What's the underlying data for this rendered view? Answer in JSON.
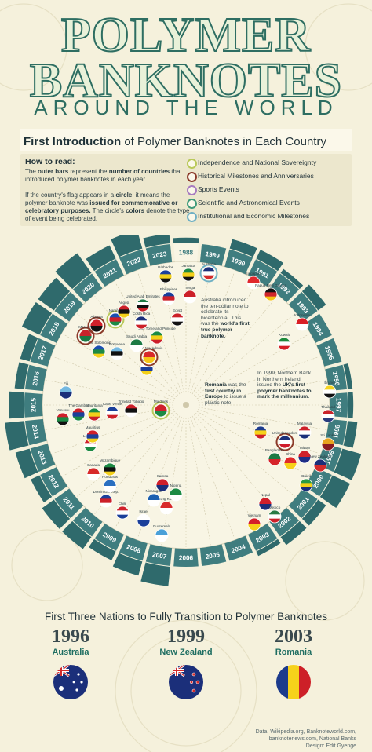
{
  "header": {
    "title_line1": "POLYMER",
    "title_line2": "BANKNOTES",
    "subtitle": "AROUND THE WORLD"
  },
  "section": {
    "title_bold": "First Introduction",
    "title_rest": " of Polymer Banknotes in Each Country"
  },
  "how_to_read": {
    "heading": "How to read:",
    "p1_a": "The ",
    "p1_b": "outer bars",
    "p1_c": " represent the ",
    "p1_d": "number of countries",
    "p1_e": " that introduced polymer banknotes in each year.",
    "p2_a": "If the country's flag appears in a ",
    "p2_b": "circle",
    "p2_c": ", it means the polymer banknote was ",
    "p2_d": "issued for commemorative or celebratory purposes.",
    "p2_e": " The circle's ",
    "p2_f": "colors",
    "p2_g": " denote the type of event being celebrated."
  },
  "legend": [
    {
      "label": "Independence and National Sovereignty",
      "color": "#b9c95a"
    },
    {
      "label": "Historical Milestones and Anniversaries",
      "color": "#8b3a2a"
    },
    {
      "label": "Sports Events",
      "color": "#a77bc0"
    },
    {
      "label": "Scientific and Astronomical Events",
      "color": "#3f9a7a"
    },
    {
      "label": "Institutional and Economic Milestones",
      "color": "#6fb0c4"
    }
  ],
  "chart_data": {
    "type": "bar",
    "title": "First Introduction of Polymer Banknotes in Each Country",
    "categories": [
      "1988",
      "1989",
      "1990",
      "1991",
      "1992",
      "1993",
      "1994",
      "1995",
      "1996",
      "1997",
      "1998",
      "1999",
      "2000",
      "2001",
      "2002",
      "2003",
      "2004",
      "2005",
      "2006",
      "2007",
      "2008",
      "2009",
      "2010",
      "2011",
      "2012",
      "2013",
      "2014",
      "2015",
      "2016",
      "2017",
      "2018",
      "2019",
      "2020",
      "2021",
      "2022",
      "2023"
    ],
    "values": [
      1,
      0,
      2,
      2,
      1,
      2,
      0,
      0,
      1,
      1,
      2,
      4,
      4,
      2,
      2,
      1,
      0,
      0,
      0,
      4,
      3,
      2,
      3,
      3,
      2,
      3,
      4,
      3,
      2,
      2,
      4,
      4,
      5,
      3,
      4,
      2
    ]
  },
  "flags": [
    {
      "name": "Australia",
      "colors": [
        "#1b2f7a",
        "#ffffff",
        "#d22b2b"
      ],
      "ring": "#6fb0c4"
    },
    {
      "name": "Singapore",
      "colors": [
        "#e0282e",
        "#ffffff"
      ],
      "ring": ""
    },
    {
      "name": "Papua New Guinea",
      "colors": [
        "#111111",
        "#d0262b",
        "#f5c518"
      ],
      "ring": ""
    },
    {
      "name": "Indonesia",
      "colors": [
        "#d91f26",
        "#ffffff"
      ],
      "ring": ""
    },
    {
      "name": "Kuwait",
      "colors": [
        "#1d8a3b",
        "#ffffff",
        "#d41f26"
      ],
      "ring": ""
    },
    {
      "name": "Brunei",
      "colors": [
        "#f3d21f",
        "#ffffff",
        "#111111"
      ],
      "ring": ""
    },
    {
      "name": "Thailand",
      "colors": [
        "#c9242b",
        "#ffffff",
        "#2a3c7e"
      ],
      "ring": ""
    },
    {
      "name": "Sri Lanka",
      "colors": [
        "#e7a31f",
        "#8a1b21"
      ],
      "ring": ""
    },
    {
      "name": "Malaysia",
      "colors": [
        "#cc2029",
        "#ffffff",
        "#1b2f7a"
      ],
      "ring": ""
    },
    {
      "name": "Romania",
      "colors": [
        "#1c3b8c",
        "#f6d21a",
        "#cd2028"
      ],
      "ring": ""
    },
    {
      "name": "United Kingdom",
      "colors": [
        "#1b2f7a",
        "#ffffff",
        "#cf1b2b"
      ],
      "ring": "#8b3a2a"
    },
    {
      "name": "Bangladesh",
      "colors": [
        "#1c7a44",
        "#d6232a"
      ],
      "ring": ""
    },
    {
      "name": "China",
      "colors": [
        "#df2a2a",
        "#f7d018"
      ],
      "ring": ""
    },
    {
      "name": "Taiwan",
      "colors": [
        "#d0202a",
        "#1f2e86"
      ],
      "ring": ""
    },
    {
      "name": "Brazil",
      "colors": [
        "#2a9a44",
        "#f3d01a",
        "#1b2f7a"
      ],
      "ring": ""
    },
    {
      "name": "New Zealand",
      "colors": [
        "#1b2f7a",
        "#d22b2b"
      ],
      "ring": ""
    },
    {
      "name": "Nepal",
      "colors": [
        "#d0202a",
        "#1b2f7a"
      ],
      "ring": ""
    },
    {
      "name": "Mexico",
      "colors": [
        "#2a7a44",
        "#ffffff",
        "#cc2029"
      ],
      "ring": ""
    },
    {
      "name": "Vietnam",
      "colors": [
        "#d4202a",
        "#f7d018"
      ],
      "ring": ""
    },
    {
      "name": "Guatemala",
      "colors": [
        "#4aa0d8",
        "#ffffff"
      ],
      "ring": ""
    },
    {
      "name": "Israel",
      "colors": [
        "#ffffff",
        "#1b3f9a"
      ],
      "ring": ""
    },
    {
      "name": "Hong Kong",
      "colors": [
        "#d82a2a",
        "#ffffff"
      ],
      "ring": ""
    },
    {
      "name": "Nicaragua",
      "colors": [
        "#1b5fb0",
        "#ffffff"
      ],
      "ring": ""
    },
    {
      "name": "Samoa",
      "colors": [
        "#d0202a",
        "#1b2f7a"
      ],
      "ring": ""
    },
    {
      "name": "Nigeria",
      "colors": [
        "#1c8a44",
        "#ffffff"
      ],
      "ring": ""
    },
    {
      "name": "Chile",
      "colors": [
        "#d0202a",
        "#ffffff",
        "#1b3f9a"
      ],
      "ring": ""
    },
    {
      "name": "Dominican Rep.",
      "colors": [
        "#1b3f9a",
        "#cc2029",
        "#ffffff"
      ],
      "ring": ""
    },
    {
      "name": "Canada",
      "colors": [
        "#d82a2a",
        "#ffffff"
      ],
      "ring": ""
    },
    {
      "name": "Honduras",
      "colors": [
        "#2a6fc0",
        "#ffffff"
      ],
      "ring": ""
    },
    {
      "name": "Mozambique",
      "colors": [
        "#1c8a44",
        "#111111",
        "#f3d01a"
      ],
      "ring": ""
    },
    {
      "name": "Lebanon",
      "colors": [
        "#d0202a",
        "#ffffff",
        "#1c8a44"
      ],
      "ring": ""
    },
    {
      "name": "Mauritius",
      "colors": [
        "#d0202a",
        "#1b3f9a",
        "#f3d01a"
      ],
      "ring": ""
    },
    {
      "name": "Vanuatu",
      "colors": [
        "#d0202a",
        "#1c8a44",
        "#111111"
      ],
      "ring": ""
    },
    {
      "name": "The Gambia",
      "colors": [
        "#cc2029",
        "#1b3f9a",
        "#1c8a44"
      ],
      "ring": ""
    },
    {
      "name": "Mauritania",
      "colors": [
        "#1c8a44",
        "#f3d01a",
        "#cc2029"
      ],
      "ring": ""
    },
    {
      "name": "Cape Verde",
      "colors": [
        "#1b3f9a",
        "#ffffff",
        "#cc2029"
      ],
      "ring": ""
    },
    {
      "name": "Trinidad Tobago",
      "colors": [
        "#cc2029",
        "#111111",
        "#ffffff"
      ],
      "ring": ""
    },
    {
      "name": "Maldives",
      "colors": [
        "#d0202a",
        "#1c8a44"
      ],
      "ring": "#b9c95a"
    },
    {
      "name": "Fiji",
      "colors": [
        "#74b8e0",
        "#1b2f7a"
      ],
      "ring": ""
    },
    {
      "name": "Uruguay",
      "colors": [
        "#ffffff",
        "#1b3f9a",
        "#f3d01a"
      ],
      "ring": ""
    },
    {
      "name": "North Macedonia",
      "colors": [
        "#d82a2a",
        "#f5c518"
      ],
      "ring": "#8b3a2a"
    },
    {
      "name": "Botswana",
      "colors": [
        "#74b8e0",
        "#111111",
        "#ffffff"
      ],
      "ring": ""
    },
    {
      "name": "The Solomons",
      "colors": [
        "#1b4fb0",
        "#1c8a44",
        "#f3d01a"
      ],
      "ring": ""
    },
    {
      "name": "Saudi Arabia",
      "colors": [
        "#1c7a44",
        "#ffffff"
      ],
      "ring": ""
    },
    {
      "name": "Sao Tome and Principe",
      "colors": [
        "#1c8a44",
        "#f3d01a",
        "#cc2029"
      ],
      "ring": ""
    },
    {
      "name": "Morocco",
      "colors": [
        "#c9242b",
        "#1c7a44"
      ],
      "ring": "#8b3a2a"
    },
    {
      "name": "Albania",
      "colors": [
        "#d0202a",
        "#111111"
      ],
      "ring": "#8b3a2a"
    },
    {
      "name": "Namibia",
      "colors": [
        "#1b4fb0",
        "#cc2029",
        "#1c8a44"
      ],
      "ring": "#b9c95a"
    },
    {
      "name": "Angola",
      "colors": [
        "#cc2029",
        "#111111",
        "#f3d01a"
      ],
      "ring": ""
    },
    {
      "name": "Costa Rica",
      "colors": [
        "#1b2f7a",
        "#ffffff",
        "#cc2029"
      ],
      "ring": ""
    },
    {
      "name": "United Arab Emirates",
      "colors": [
        "#1c7a44",
        "#ffffff",
        "#111111",
        "#cc2029"
      ],
      "ring": ""
    },
    {
      "name": "Barbados",
      "colors": [
        "#1b3f9a",
        "#f3d01a",
        "#111111"
      ],
      "ring": ""
    },
    {
      "name": "Jamaica",
      "colors": [
        "#1c8a44",
        "#f3d01a",
        "#111111"
      ],
      "ring": ""
    },
    {
      "name": "Philippines",
      "colors": [
        "#1b3f9a",
        "#cc2029",
        "#ffffff"
      ],
      "ring": ""
    },
    {
      "name": "Tonga",
      "colors": [
        "#cc2029",
        "#ffffff"
      ],
      "ring": ""
    },
    {
      "name": "Egypt",
      "colors": [
        "#cc2029",
        "#ffffff",
        "#111111"
      ],
      "ring": ""
    }
  ],
  "annotations": {
    "australia_a": "Australia introduced the ten-dollar note to celebrate its bicentennial. This was the ",
    "australia_b": "world's first true polymer banknote.",
    "romania_a": "Romania",
    "romania_b": " was the ",
    "romania_c": "first country in Europe",
    "romania_d": " to issue a plastic note.",
    "uk_a": "In 1999, Northern Bank in Northern Ireland issued the ",
    "uk_b": "UK's first polymer banknotes to mark the millennium."
  },
  "bottom": {
    "title": "First Three Nations to Fully Transition to Polymer Banknotes",
    "items": [
      {
        "year": "1996",
        "country": "Australia"
      },
      {
        "year": "1999",
        "country": "New Zealand"
      },
      {
        "year": "2003",
        "country": "Romania"
      }
    ]
  },
  "credits": {
    "line1": "Data: Wikipedia.org, Banknoteworld.com,",
    "line2": "banknotenews.com, National Banks",
    "line3": "Design: Edit Gyenge"
  }
}
